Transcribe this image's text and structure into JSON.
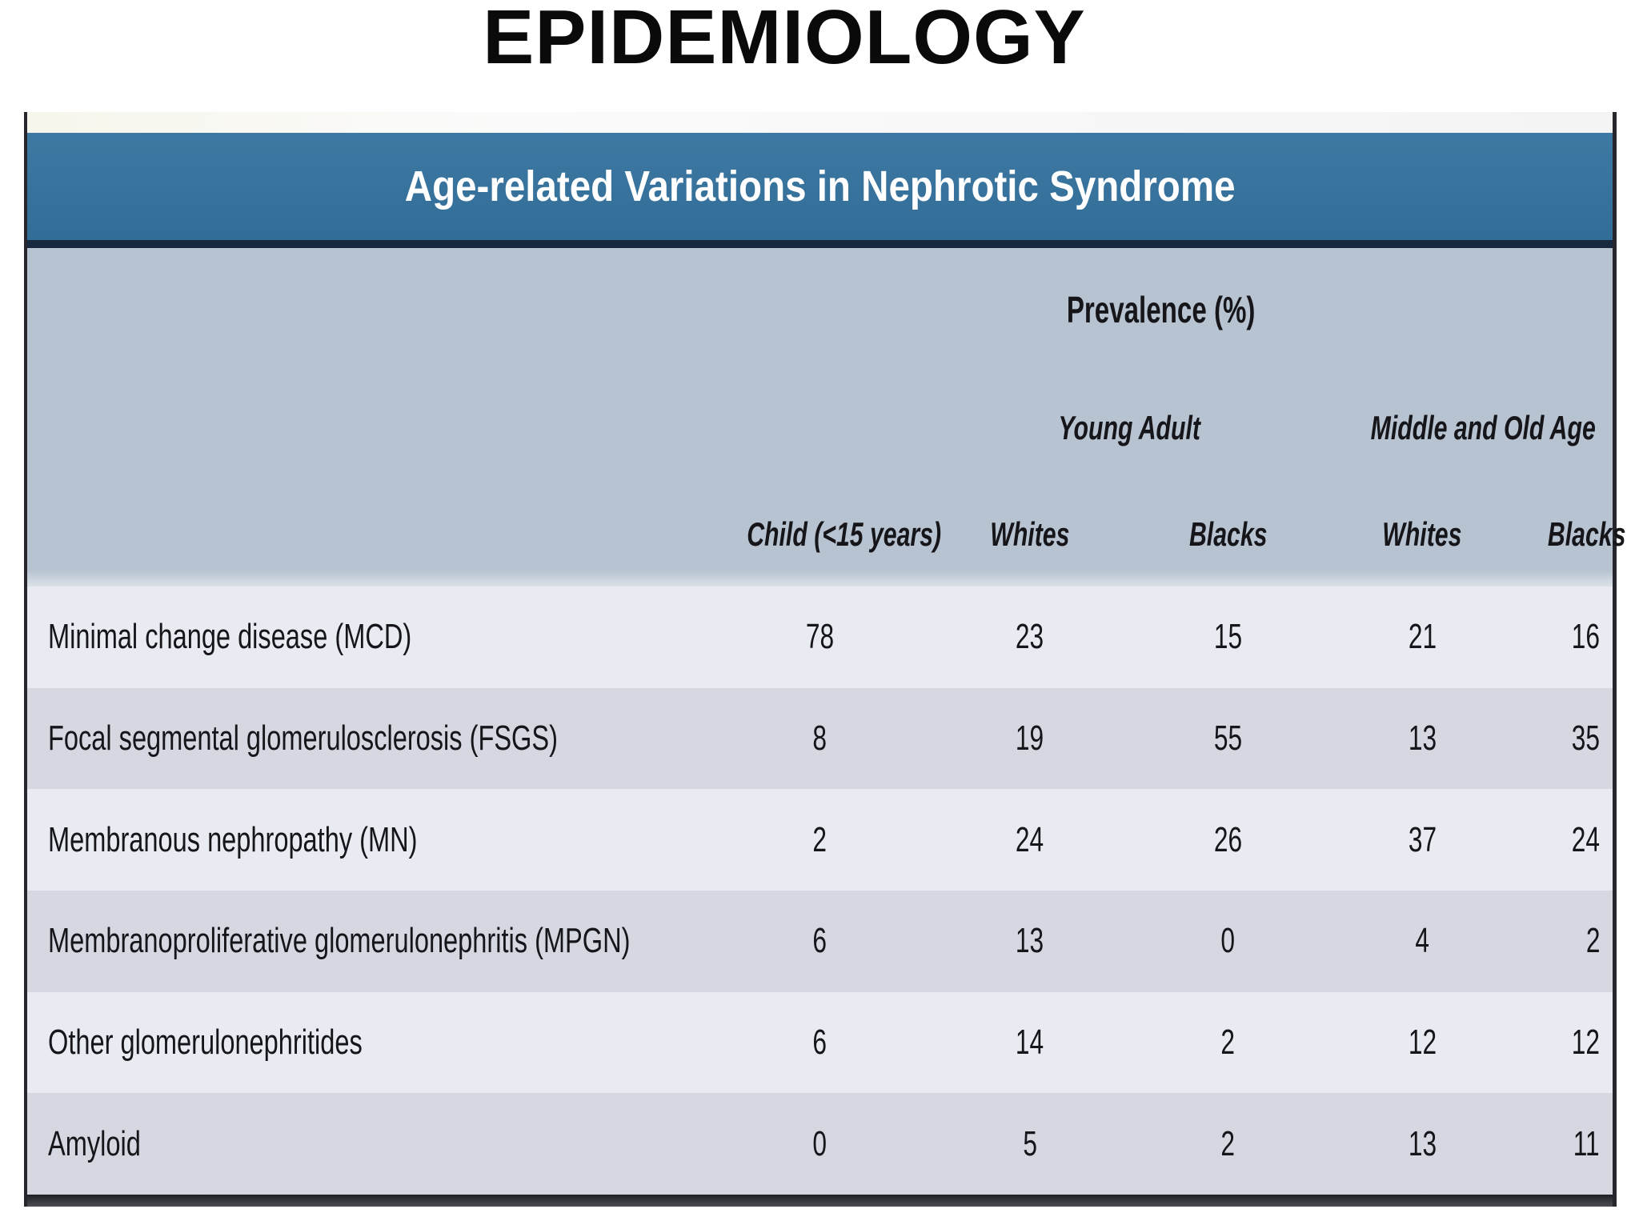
{
  "page": {
    "title": "EPIDEMIOLOGY"
  },
  "table": {
    "title": "Age-related Variations in Nephrotic Syndrome",
    "prevalence_header": "Prevalence (%)",
    "group_headers": [
      "Young Adult",
      "Middle and Old Age"
    ],
    "column_headers": [
      "Child (<15 years)",
      "Whites",
      "Blacks",
      "Whites",
      "Blacks"
    ],
    "rows": [
      {
        "label": "Minimal change disease (MCD)",
        "values": [
          78,
          23,
          15,
          21,
          16
        ]
      },
      {
        "label": "Focal segmental glomerulosclerosis (FSGS)",
        "values": [
          8,
          19,
          55,
          13,
          35
        ]
      },
      {
        "label": "Membranous nephropathy (MN)",
        "values": [
          2,
          24,
          26,
          37,
          24
        ]
      },
      {
        "label": "Membranoproliferative glomerulonephritis (MPGN)",
        "values": [
          6,
          13,
          0,
          4,
          2
        ]
      },
      {
        "label": "Other glomerulonephritides",
        "values": [
          6,
          14,
          2,
          12,
          12
        ]
      },
      {
        "label": "Amyloid",
        "values": [
          0,
          5,
          2,
          13,
          11
        ]
      }
    ],
    "colors": {
      "header_bar": "#35709b",
      "header_text": "#ffffff",
      "divider_navy": "#16293e",
      "subheader_bg": "#b7c3d0",
      "row_light": "#e9ebf2",
      "row_dark": "#d5d8e0",
      "border_dark": "#26262c",
      "text": "#15151a"
    }
  }
}
